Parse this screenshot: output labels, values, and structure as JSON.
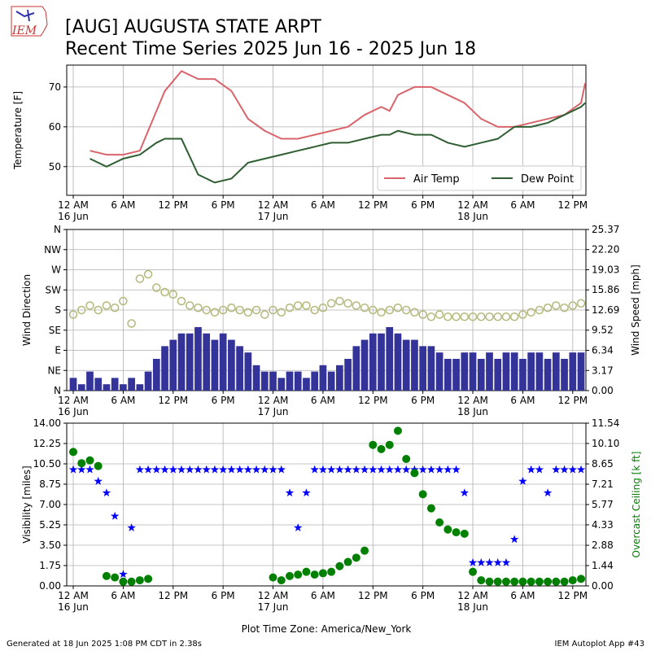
{
  "header": {
    "logo": "IEM",
    "title": "[AUG] AUGUSTA STATE ARPT",
    "subtitle": "Recent Time Series 2025 Jun 16 - 2025 Jun 18"
  },
  "footer": {
    "generated": "Generated at 18 Jun 2025 1:08 PM CDT in 2.38s",
    "app": "IEM Autoplot App #43"
  },
  "chart_data": [
    {
      "type": "line",
      "ylabel": "Temperature [F]",
      "grid": true,
      "legend": "lower right",
      "xlim": [
        "2025-06-15T23:13",
        "2025-06-18T13:35"
      ],
      "xticks": [
        {
          "value": "2025-06-16T00:00",
          "label": "12 AM\n16 Jun"
        },
        {
          "value": "2025-06-16T06:00",
          "label": "6 AM"
        },
        {
          "value": "2025-06-16T12:00",
          "label": "12 PM"
        },
        {
          "value": "2025-06-16T18:00",
          "label": "6 PM"
        },
        {
          "value": "2025-06-17T00:00",
          "label": "12 AM\n17 Jun"
        },
        {
          "value": "2025-06-17T06:00",
          "label": "6 AM"
        },
        {
          "value": "2025-06-17T12:00",
          "label": "12 PM"
        },
        {
          "value": "2025-06-17T18:00",
          "label": "6 PM"
        },
        {
          "value": "2025-06-18T00:00",
          "label": "12 AM\n18 Jun"
        },
        {
          "value": "2025-06-18T06:00",
          "label": "6 AM"
        },
        {
          "value": "2025-06-18T12:00",
          "label": "12 PM"
        }
      ],
      "ylim": [
        42.8,
        75.5
      ],
      "yticks": [
        50,
        60,
        70
      ],
      "x": [
        "2025-06-16T02:00",
        "2025-06-16T04:00",
        "2025-06-16T06:00",
        "2025-06-16T08:00",
        "2025-06-16T10:00",
        "2025-06-16T11:00",
        "2025-06-16T13:00",
        "2025-06-16T15:00",
        "2025-06-16T17:00",
        "2025-06-16T19:00",
        "2025-06-16T21:00",
        "2025-06-16T23:00",
        "2025-06-17T01:00",
        "2025-06-17T03:00",
        "2025-06-17T05:00",
        "2025-06-17T07:00",
        "2025-06-17T09:00",
        "2025-06-17T11:00",
        "2025-06-17T13:00",
        "2025-06-17T14:00",
        "2025-06-17T15:00",
        "2025-06-17T17:00",
        "2025-06-17T19:00",
        "2025-06-17T21:00",
        "2025-06-17T23:00",
        "2025-06-18T01:00",
        "2025-06-18T03:00",
        "2025-06-18T05:00",
        "2025-06-18T07:00",
        "2025-06-18T09:00",
        "2025-06-18T11:00",
        "2025-06-18T13:00",
        "2025-06-18T13:30"
      ],
      "series": [
        {
          "name": "Air Temp",
          "color": "#d9646b",
          "values": [
            54,
            53,
            53,
            54,
            64,
            69,
            74,
            72,
            72,
            69,
            62,
            59,
            57,
            57,
            58,
            59,
            60,
            63,
            65,
            64,
            68,
            70,
            70,
            68,
            66,
            62,
            60,
            60,
            61,
            62,
            63,
            66,
            71
          ]
        },
        {
          "name": "Dew Point",
          "color": "#2e5e32",
          "values": [
            52,
            50,
            52,
            53,
            56,
            57,
            57,
            48,
            46,
            47,
            51,
            52,
            53,
            54,
            55,
            56,
            56,
            57,
            58,
            58,
            59,
            58,
            58,
            56,
            55,
            56,
            57,
            60,
            60,
            61,
            63,
            65,
            66
          ]
        }
      ]
    },
    {
      "type": "combo",
      "ylabel": "Wind Direction",
      "y2label": "Wind Speed [mph]",
      "grid": true,
      "xlim": [
        "2025-06-15T23:13",
        "2025-06-18T13:35"
      ],
      "xticks": [
        {
          "value": "2025-06-16T00:00",
          "label": "12 AM\n16 Jun"
        },
        {
          "value": "2025-06-16T06:00",
          "label": "6 AM"
        },
        {
          "value": "2025-06-16T12:00",
          "label": "12 PM"
        },
        {
          "value": "2025-06-16T18:00",
          "label": "6 PM"
        },
        {
          "value": "2025-06-17T00:00",
          "label": "12 AM\n17 Jun"
        },
        {
          "value": "2025-06-17T06:00",
          "label": "6 AM"
        },
        {
          "value": "2025-06-17T12:00",
          "label": "12 PM"
        },
        {
          "value": "2025-06-17T18:00",
          "label": "6 PM"
        },
        {
          "value": "2025-06-18T00:00",
          "label": "12 AM\n18 Jun"
        },
        {
          "value": "2025-06-18T06:00",
          "label": "6 AM"
        },
        {
          "value": "2025-06-18T12:00",
          "label": "12 PM"
        }
      ],
      "ylim": [
        0,
        360
      ],
      "yticks": [
        {
          "value": 0,
          "label": "N"
        },
        {
          "value": 45,
          "label": "NE"
        },
        {
          "value": 90,
          "label": "E"
        },
        {
          "value": 135,
          "label": "SE"
        },
        {
          "value": 180,
          "label": "S"
        },
        {
          "value": 225,
          "label": "SW"
        },
        {
          "value": 270,
          "label": "W"
        },
        {
          "value": 315,
          "label": "NW"
        },
        {
          "value": 360,
          "label": "N"
        }
      ],
      "y2lim": [
        0,
        25.37
      ],
      "y2ticks": [
        {
          "value": 0,
          "label": "0.00"
        },
        {
          "value": 3.17,
          "label": "3.17"
        },
        {
          "value": 6.34,
          "label": "6.34"
        },
        {
          "value": 9.52,
          "label": "9.52"
        },
        {
          "value": 12.69,
          "label": "12.69"
        },
        {
          "value": 15.86,
          "label": "15.86"
        },
        {
          "value": 19.03,
          "label": "19.03"
        },
        {
          "value": 22.2,
          "label": "22.20"
        },
        {
          "value": 25.37,
          "label": "25.37"
        }
      ],
      "x": [
        "2025-06-16T00:00",
        "2025-06-16T01:00",
        "2025-06-16T02:00",
        "2025-06-16T03:00",
        "2025-06-16T04:00",
        "2025-06-16T05:00",
        "2025-06-16T06:00",
        "2025-06-16T07:00",
        "2025-06-16T08:00",
        "2025-06-16T09:00",
        "2025-06-16T10:00",
        "2025-06-16T11:00",
        "2025-06-16T12:00",
        "2025-06-16T13:00",
        "2025-06-16T14:00",
        "2025-06-16T15:00",
        "2025-06-16T16:00",
        "2025-06-16T17:00",
        "2025-06-16T18:00",
        "2025-06-16T19:00",
        "2025-06-16T20:00",
        "2025-06-16T21:00",
        "2025-06-16T22:00",
        "2025-06-16T23:00",
        "2025-06-17T00:00",
        "2025-06-17T01:00",
        "2025-06-17T02:00",
        "2025-06-17T03:00",
        "2025-06-17T04:00",
        "2025-06-17T05:00",
        "2025-06-17T06:00",
        "2025-06-17T07:00",
        "2025-06-17T08:00",
        "2025-06-17T09:00",
        "2025-06-17T10:00",
        "2025-06-17T11:00",
        "2025-06-17T12:00",
        "2025-06-17T13:00",
        "2025-06-17T14:00",
        "2025-06-17T15:00",
        "2025-06-17T16:00",
        "2025-06-17T17:00",
        "2025-06-17T18:00",
        "2025-06-17T19:00",
        "2025-06-17T20:00",
        "2025-06-17T21:00",
        "2025-06-17T22:00",
        "2025-06-17T23:00",
        "2025-06-18T00:00",
        "2025-06-18T01:00",
        "2025-06-18T02:00",
        "2025-06-18T03:00",
        "2025-06-18T04:00",
        "2025-06-18T05:00",
        "2025-06-18T06:00",
        "2025-06-18T07:00",
        "2025-06-18T08:00",
        "2025-06-18T09:00",
        "2025-06-18T10:00",
        "2025-06-18T11:00",
        "2025-06-18T12:00",
        "2025-06-18T13:00"
      ],
      "series": [
        {
          "type": "bar",
          "axis": "y2",
          "color": "#333399",
          "values": [
            2,
            1,
            3,
            2,
            1,
            2,
            1,
            2,
            1,
            3,
            5,
            7,
            8,
            9,
            9,
            10,
            9,
            8,
            9,
            8,
            7,
            6,
            4,
            3,
            3,
            2,
            3,
            3,
            2,
            3,
            4,
            3,
            4,
            5,
            7,
            8,
            9,
            9,
            10,
            9,
            8,
            8,
            7,
            7,
            6,
            5,
            5,
            6,
            6,
            5,
            6,
            5,
            6,
            6,
            5,
            6,
            6,
            5,
            6,
            5,
            6,
            6
          ]
        },
        {
          "type": "scatter",
          "marker": "hollow-circle",
          "color": "#b5b87a",
          "values": [
            170,
            180,
            190,
            180,
            190,
            185,
            200,
            150,
            250,
            260,
            230,
            220,
            215,
            200,
            190,
            185,
            180,
            175,
            180,
            185,
            180,
            175,
            180,
            170,
            180,
            175,
            185,
            190,
            190,
            180,
            185,
            195,
            200,
            195,
            190,
            185,
            180,
            175,
            180,
            185,
            180,
            175,
            170,
            165,
            170,
            165,
            165,
            165,
            165,
            165,
            165,
            165,
            165,
            165,
            170,
            175,
            180,
            185,
            190,
            185,
            190,
            195
          ]
        }
      ]
    },
    {
      "type": "scatter",
      "ylabel": "Visibility [miles]",
      "y2label": "Overcast Ceiling [k ft]",
      "xlabel": "Plot Time Zone: America/New_York",
      "grid": true,
      "xlim": [
        "2025-06-15T23:13",
        "2025-06-18T13:35"
      ],
      "xticks": [
        {
          "value": "2025-06-16T00:00",
          "label": "12 AM\n16 Jun"
        },
        {
          "value": "2025-06-16T06:00",
          "label": "6 AM"
        },
        {
          "value": "2025-06-16T12:00",
          "label": "12 PM"
        },
        {
          "value": "2025-06-16T18:00",
          "label": "6 PM"
        },
        {
          "value": "2025-06-17T00:00",
          "label": "12 AM\n17 Jun"
        },
        {
          "value": "2025-06-17T06:00",
          "label": "6 AM"
        },
        {
          "value": "2025-06-17T12:00",
          "label": "12 PM"
        },
        {
          "value": "2025-06-17T18:00",
          "label": "6 PM"
        },
        {
          "value": "2025-06-18T00:00",
          "label": "12 AM\n18 Jun"
        },
        {
          "value": "2025-06-18T06:00",
          "label": "6 AM"
        },
        {
          "value": "2025-06-18T12:00",
          "label": "12 PM"
        }
      ],
      "ylim": [
        0,
        14
      ],
      "yticks": [
        {
          "value": 0,
          "label": "0.00"
        },
        {
          "value": 1.75,
          "label": "1.75"
        },
        {
          "value": 3.5,
          "label": "3.50"
        },
        {
          "value": 5.25,
          "label": "5.25"
        },
        {
          "value": 7,
          "label": "7.00"
        },
        {
          "value": 8.75,
          "label": "8.75"
        },
        {
          "value": 10.5,
          "label": "10.50"
        },
        {
          "value": 12.25,
          "label": "12.25"
        },
        {
          "value": 14,
          "label": "14.00"
        }
      ],
      "y2lim": [
        0,
        11.54
      ],
      "y2ticks": [
        {
          "value": 0,
          "label": "0.00"
        },
        {
          "value": 1.44,
          "label": "1.44"
        },
        {
          "value": 2.88,
          "label": "2.88"
        },
        {
          "value": 4.33,
          "label": "4.33"
        },
        {
          "value": 5.77,
          "label": "5.77"
        },
        {
          "value": 7.21,
          "label": "7.21"
        },
        {
          "value": 8.65,
          "label": "8.65"
        },
        {
          "value": 10.1,
          "label": "10.10"
        },
        {
          "value": 11.54,
          "label": "11.54"
        }
      ],
      "x": [
        "2025-06-16T00:00",
        "2025-06-16T01:00",
        "2025-06-16T02:00",
        "2025-06-16T03:00",
        "2025-06-16T04:00",
        "2025-06-16T05:00",
        "2025-06-16T06:00",
        "2025-06-16T07:00",
        "2025-06-16T08:00",
        "2025-06-16T09:00",
        "2025-06-16T10:00",
        "2025-06-16T11:00",
        "2025-06-16T12:00",
        "2025-06-16T13:00",
        "2025-06-16T14:00",
        "2025-06-16T15:00",
        "2025-06-16T16:00",
        "2025-06-16T17:00",
        "2025-06-16T18:00",
        "2025-06-16T19:00",
        "2025-06-16T20:00",
        "2025-06-16T21:00",
        "2025-06-16T22:00",
        "2025-06-16T23:00",
        "2025-06-17T00:00",
        "2025-06-17T01:00",
        "2025-06-17T02:00",
        "2025-06-17T03:00",
        "2025-06-17T04:00",
        "2025-06-17T05:00",
        "2025-06-17T06:00",
        "2025-06-17T07:00",
        "2025-06-17T08:00",
        "2025-06-17T09:00",
        "2025-06-17T10:00",
        "2025-06-17T11:00",
        "2025-06-17T12:00",
        "2025-06-17T13:00",
        "2025-06-17T14:00",
        "2025-06-17T15:00",
        "2025-06-17T16:00",
        "2025-06-17T17:00",
        "2025-06-17T18:00",
        "2025-06-17T19:00",
        "2025-06-17T20:00",
        "2025-06-17T21:00",
        "2025-06-17T22:00",
        "2025-06-17T23:00",
        "2025-06-18T00:00",
        "2025-06-18T01:00",
        "2025-06-18T02:00",
        "2025-06-18T03:00",
        "2025-06-18T04:00",
        "2025-06-18T05:00",
        "2025-06-18T06:00",
        "2025-06-18T07:00",
        "2025-06-18T08:00",
        "2025-06-18T09:00",
        "2025-06-18T10:00",
        "2025-06-18T11:00",
        "2025-06-18T12:00",
        "2025-06-18T13:00"
      ],
      "series": [
        {
          "type": "scatter",
          "marker": "star",
          "color": "#0000ff",
          "values": [
            10,
            10,
            10,
            9,
            8,
            6,
            1,
            5,
            10,
            10,
            10,
            10,
            10,
            10,
            10,
            10,
            10,
            10,
            10,
            10,
            10,
            10,
            10,
            10,
            10,
            10,
            8,
            5,
            8,
            10,
            10,
            10,
            10,
            10,
            10,
            10,
            10,
            10,
            10,
            10,
            10,
            10,
            10,
            10,
            10,
            10,
            10,
            8,
            2,
            2,
            2,
            2,
            2,
            4,
            9,
            10,
            10,
            8,
            10,
            10,
            10,
            10
          ]
        },
        {
          "type": "scatter",
          "marker": "circle",
          "axis": "y2",
          "color": "#008000",
          "values": [
            9.5,
            8.7,
            8.9,
            8.5,
            0.7,
            0.6,
            0.3,
            0.3,
            0.4,
            0.5,
            null,
            null,
            null,
            null,
            null,
            null,
            null,
            null,
            null,
            null,
            null,
            null,
            null,
            null,
            0.6,
            0.4,
            0.7,
            0.8,
            1.0,
            0.8,
            0.9,
            1.0,
            1.4,
            1.7,
            2.0,
            2.5,
            10.0,
            9.7,
            10.0,
            11.0,
            9.0,
            8.0,
            6.5,
            5.5,
            4.5,
            4.0,
            3.8,
            3.7,
            1.0,
            0.4,
            0.3,
            0.3,
            0.3,
            0.3,
            0.3,
            0.3,
            0.3,
            0.3,
            0.3,
            0.3,
            0.4,
            0.5
          ]
        }
      ]
    }
  ]
}
